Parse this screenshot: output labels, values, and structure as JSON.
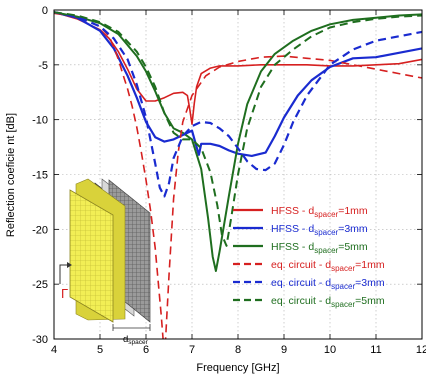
{
  "chart_data": {
    "type": "line",
    "title": "",
    "xlabel": "Frequency [GHz]",
    "ylabel": "Reflection coeficie nt [dB]",
    "xlim": [
      4,
      12
    ],
    "ylim": [
      -30,
      0
    ],
    "xticks": [
      4,
      5,
      6,
      7,
      8,
      9,
      10,
      11,
      12
    ],
    "yticks": [
      0,
      -5,
      -10,
      -15,
      -20,
      -25,
      -30
    ],
    "grid": true,
    "legend_position": "bottom-right",
    "legend": [
      {
        "prefix": "HFSS - d",
        "sub": "spacer",
        "suffix": "=1mm",
        "color": "#d62020",
        "dash": "solid"
      },
      {
        "prefix": "HFSS - d",
        "sub": "spacer",
        "suffix": "=3mm",
        "color": "#1a2bd0",
        "dash": "solid"
      },
      {
        "prefix": "HFSS - d",
        "sub": "spacer",
        "suffix": "=5mm",
        "color": "#1f6e1f",
        "dash": "solid"
      },
      {
        "prefix": "eq. circuit - d",
        "sub": "spacer",
        "suffix": "=1mm",
        "color": "#d62020",
        "dash": "dashed"
      },
      {
        "prefix": "eq. circuit - d",
        "sub": "spacer",
        "suffix": "=3mm",
        "color": "#1a2bd0",
        "dash": "dashed"
      },
      {
        "prefix": "eq. circuit - d",
        "sub": "spacer",
        "suffix": "=5mm",
        "color": "#1f6e1f",
        "dash": "dashed"
      }
    ],
    "inset": {
      "gamma": "Γ",
      "dim_prefix": "d",
      "dim_sub": "spacer",
      "colors": {
        "front": "#f2ee55",
        "front_grid": "#c9c23a",
        "back": "#7a7a7a"
      }
    },
    "series": [
      {
        "color": "#d62020",
        "dash": "solid",
        "width": 1.6,
        "x": [
          4.0,
          4.5,
          5.0,
          5.2,
          5.4,
          5.6,
          5.8,
          6.0,
          6.2,
          6.4,
          6.6,
          6.8,
          6.9,
          6.95,
          7.0,
          7.05,
          7.1,
          7.2,
          7.4,
          7.6,
          8.0,
          8.5,
          9.0,
          9.5,
          10.0,
          10.5,
          11.0,
          11.5,
          12.0
        ],
        "y": [
          -0.2,
          -0.8,
          -1.8,
          -2.6,
          -3.8,
          -5.4,
          -7.2,
          -8.3,
          -8.3,
          -8.0,
          -7.6,
          -7.5,
          -7.8,
          -9.0,
          -10.4,
          -8.5,
          -7.0,
          -5.8,
          -5.3,
          -5.1,
          -5.1,
          -5.0,
          -5.0,
          -5.0,
          -5.1,
          -5.1,
          -5.0,
          -4.9,
          -4.5
        ]
      },
      {
        "color": "#1a2bd0",
        "dash": "solid",
        "width": 2.2,
        "x": [
          4.0,
          4.5,
          5.0,
          5.3,
          5.6,
          5.8,
          6.0,
          6.2,
          6.4,
          6.6,
          6.8,
          7.0,
          7.1,
          7.15,
          7.2,
          7.4,
          7.6,
          7.8,
          8.0,
          8.3,
          8.6,
          8.8,
          9.0,
          9.3,
          9.6,
          10.0,
          10.5,
          11.0,
          11.5,
          12.0
        ],
        "y": [
          -0.2,
          -0.7,
          -1.9,
          -3.5,
          -6.0,
          -8.0,
          -10.2,
          -11.6,
          -12.0,
          -11.8,
          -11.4,
          -11.0,
          -12.5,
          -13.2,
          -12.2,
          -12.2,
          -12.4,
          -12.8,
          -13.1,
          -13.3,
          -13.0,
          -11.5,
          -9.8,
          -7.8,
          -6.4,
          -5.2,
          -4.4,
          -4.3,
          -3.9,
          -3.5
        ]
      },
      {
        "color": "#1f6e1f",
        "dash": "solid",
        "width": 2.0,
        "x": [
          4.0,
          4.5,
          5.0,
          5.4,
          5.8,
          6.0,
          6.2,
          6.4,
          6.6,
          6.8,
          7.0,
          7.2,
          7.35,
          7.45,
          7.52,
          7.6,
          7.8,
          8.0,
          8.2,
          8.5,
          8.8,
          9.2,
          9.6,
          10.0,
          10.5,
          11.0,
          11.5,
          12.0
        ],
        "y": [
          -0.2,
          -0.6,
          -1.2,
          -2.2,
          -4.2,
          -5.6,
          -7.4,
          -9.4,
          -10.8,
          -11.2,
          -11.8,
          -14.5,
          -19.0,
          -22.5,
          -23.8,
          -22.0,
          -17.0,
          -12.2,
          -8.6,
          -5.6,
          -4.0,
          -2.8,
          -1.9,
          -1.3,
          -0.9,
          -0.7,
          -0.5,
          -0.4
        ]
      },
      {
        "color": "#d62020",
        "dash": "dashed",
        "width": 1.6,
        "x": [
          4.0,
          4.5,
          5.0,
          5.2,
          5.3,
          5.4,
          5.5,
          5.6,
          5.7,
          5.8,
          5.9,
          6.0,
          6.1,
          6.2,
          6.28,
          6.33,
          6.38,
          6.42,
          6.5,
          6.6,
          6.7,
          6.8,
          7.0,
          7.3,
          7.6,
          8.0,
          8.5,
          9.0,
          9.5,
          10.0,
          10.5,
          11.0,
          11.5,
          12.0
        ],
        "y": [
          -0.3,
          -0.6,
          -1.5,
          -2.4,
          -3.4,
          -4.5,
          -5.9,
          -7.2,
          -8.8,
          -10.7,
          -13.0,
          -15.5,
          -18.3,
          -21.7,
          -25.5,
          -27.8,
          -30.5,
          -30.5,
          -24.2,
          -17.2,
          -13.0,
          -10.2,
          -7.8,
          -6.0,
          -5.2,
          -4.7,
          -4.3,
          -4.2,
          -4.4,
          -4.6,
          -5.0,
          -5.4,
          -5.8,
          -6.2
        ]
      },
      {
        "color": "#1a2bd0",
        "dash": "dashed",
        "width": 2.2,
        "x": [
          4.0,
          4.5,
          5.0,
          5.3,
          5.6,
          5.8,
          6.0,
          6.2,
          6.3,
          6.4,
          6.5,
          6.6,
          6.8,
          7.0,
          7.2,
          7.4,
          7.6,
          7.8,
          8.0,
          8.2,
          8.4,
          8.6,
          8.8,
          9.0,
          9.2,
          9.5,
          10.0,
          10.5,
          11.0,
          11.5,
          12.0
        ],
        "y": [
          -0.2,
          -0.6,
          -1.5,
          -2.6,
          -4.5,
          -6.8,
          -9.8,
          -14.0,
          -16.2,
          -17.0,
          -15.8,
          -13.5,
          -11.5,
          -10.6,
          -10.2,
          -10.3,
          -10.8,
          -11.5,
          -12.6,
          -13.8,
          -14.5,
          -14.6,
          -14.0,
          -12.3,
          -10.2,
          -7.8,
          -5.0,
          -3.6,
          -2.8,
          -2.4,
          -2.0
        ]
      },
      {
        "color": "#1f6e1f",
        "dash": "dashed",
        "width": 2.0,
        "x": [
          4.0,
          4.5,
          5.0,
          5.4,
          5.8,
          6.0,
          6.2,
          6.4,
          6.6,
          6.8,
          7.0,
          7.2,
          7.4,
          7.55,
          7.65,
          7.75,
          7.85,
          8.0,
          8.2,
          8.5,
          8.8,
          9.2,
          9.6,
          10.0,
          10.5,
          11.0,
          11.5,
          12.0
        ],
        "y": [
          -0.2,
          -0.5,
          -1.1,
          -2.0,
          -3.8,
          -5.2,
          -7.0,
          -9.4,
          -11.2,
          -11.8,
          -11.8,
          -12.6,
          -14.8,
          -17.8,
          -20.5,
          -21.5,
          -19.0,
          -15.0,
          -10.8,
          -7.0,
          -5.0,
          -3.6,
          -2.4,
          -1.6,
          -1.1,
          -0.8,
          -0.6,
          -0.5
        ]
      }
    ]
  }
}
